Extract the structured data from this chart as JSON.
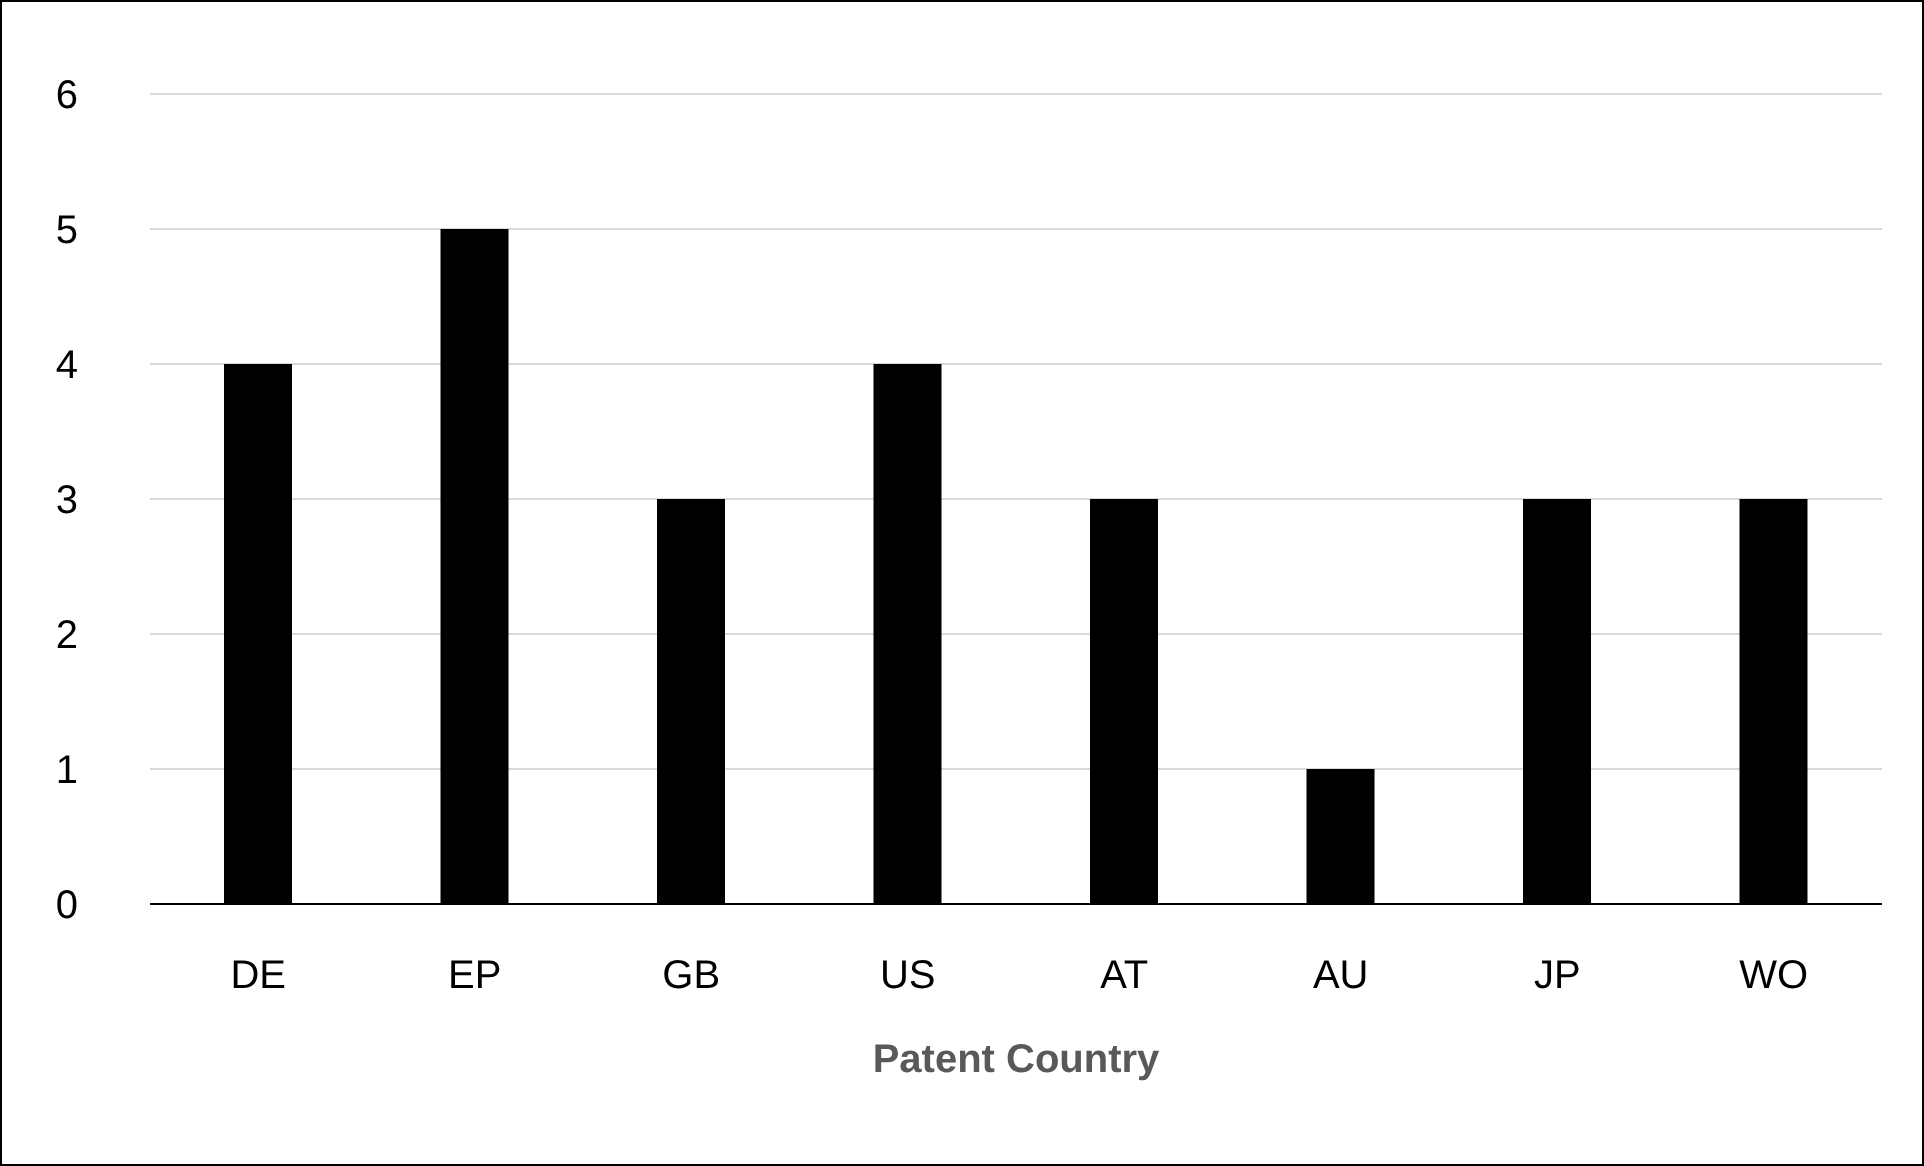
{
  "chart_data": {
    "type": "bar",
    "xlabel": "Patent Country",
    "categories": [
      "DE",
      "EP",
      "GB",
      "US",
      "AT",
      "AU",
      "JP",
      "WO"
    ],
    "values": [
      4,
      5,
      3,
      4,
      3,
      1,
      3,
      3
    ],
    "color": "#000000",
    "ylim": [
      0,
      6
    ],
    "yticks": [
      0,
      1,
      2,
      3,
      4,
      5,
      6
    ],
    "grid": "y"
  }
}
